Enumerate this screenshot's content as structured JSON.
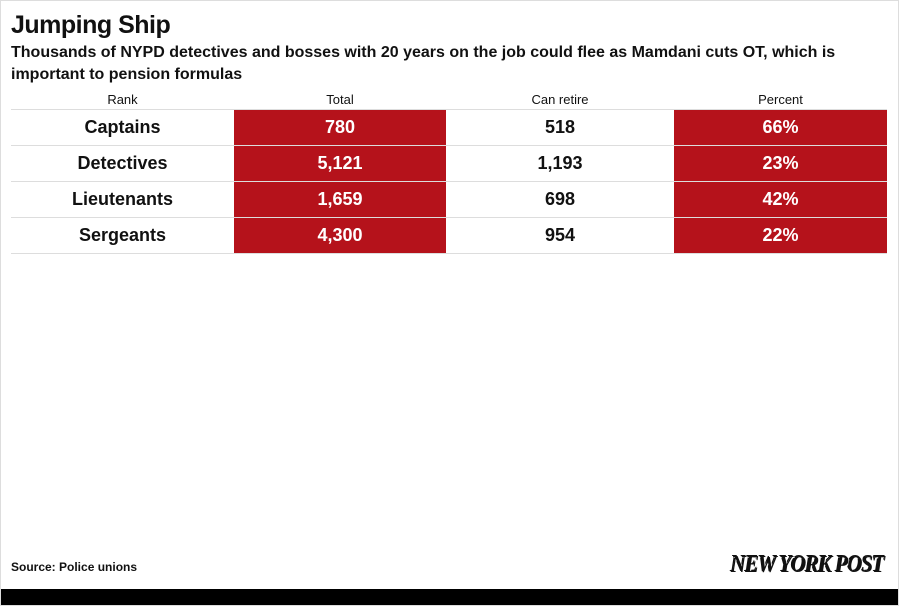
{
  "header": {
    "title": "Jumping Ship",
    "subtitle": "Thousands of NYPD detectives and bosses with 20 years on the job could flee as Mamdani cuts OT, which is important to pension formulas"
  },
  "table": {
    "columns": [
      "Rank",
      "Total",
      "Can retire",
      "Percent"
    ],
    "rows": [
      [
        "Captains",
        "780",
        "518",
        "66%"
      ],
      [
        "Detectives",
        "5,121",
        "1,193",
        "23%"
      ],
      [
        "Lieutenants",
        "1,659",
        "698",
        "42%"
      ],
      [
        "Sergeants",
        "4,300",
        "954",
        "22%"
      ]
    ]
  },
  "footer": {
    "source": "Source: Police unions",
    "logo": "NEW YORK POST"
  }
}
